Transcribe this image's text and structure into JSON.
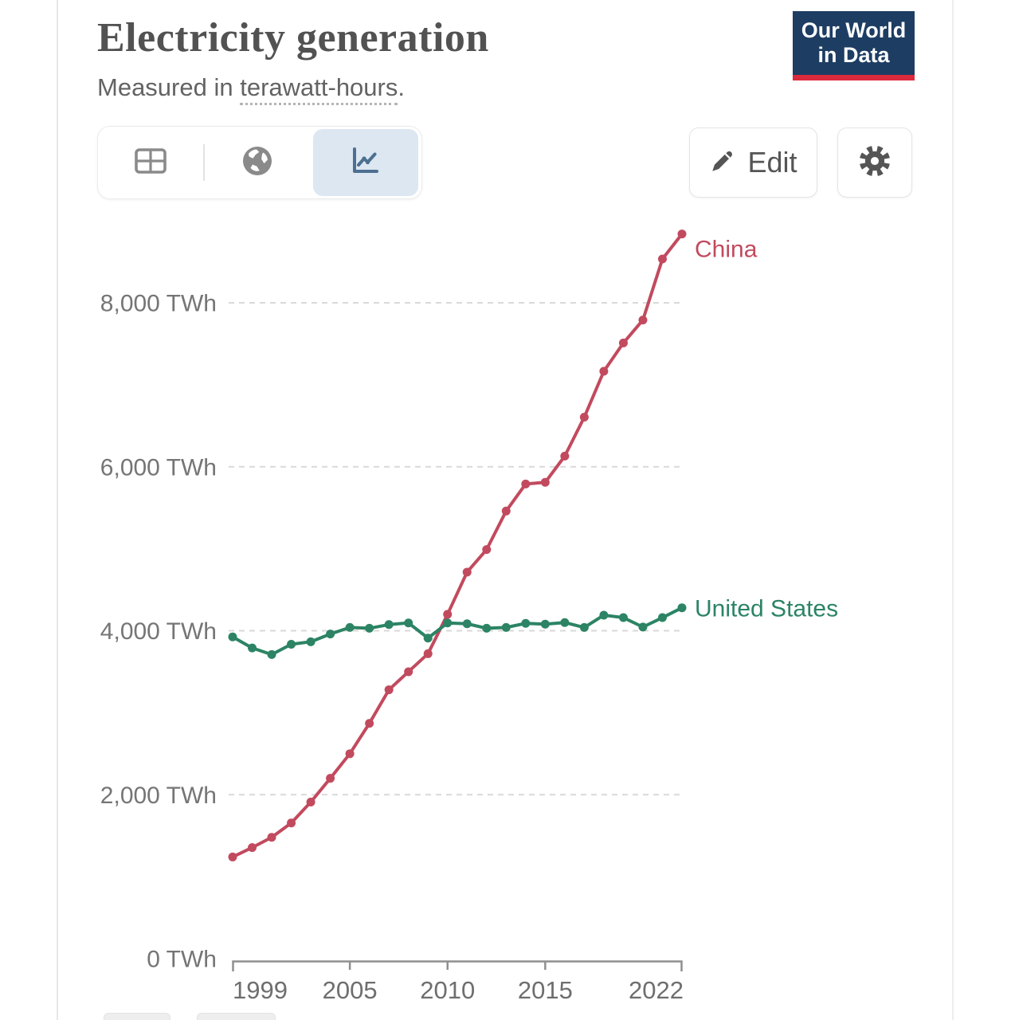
{
  "header": {
    "title": "Electricity generation",
    "subtitle_prefix": "Measured in ",
    "subtitle_term": "terawatt-hours",
    "subtitle_suffix": ".",
    "logo": {
      "line1": "Our World",
      "line2": "in Data"
    }
  },
  "toolbar": {
    "icons": [
      "table",
      "globe",
      "line-chart"
    ],
    "active_icon": "line-chart",
    "active_bg": "#dce7f2"
  },
  "actions": {
    "edit_label": "Edit"
  },
  "colors": {
    "china": "#c24a5e",
    "united_states": "#2c8465",
    "gridline": "#d9d9d9",
    "axis": "#8f8f8f",
    "logo_bg": "#1d3d63",
    "logo_stripe": "#dc2a3d"
  },
  "chart_data": {
    "type": "line",
    "title": "Electricity generation",
    "subtitle": "Measured in terawatt-hours.",
    "unit": "TWh",
    "grid": true,
    "legend_position": "end-of-line-labels",
    "ylim": [
      0,
      9000
    ],
    "x": [
      1999,
      2000,
      2001,
      2002,
      2003,
      2004,
      2005,
      2006,
      2007,
      2008,
      2009,
      2010,
      2011,
      2012,
      2013,
      2014,
      2015,
      2016,
      2017,
      2018,
      2019,
      2020,
      2021,
      2022
    ],
    "x_axis": {
      "ticks": [
        {
          "year": 1999,
          "anchor": "start"
        },
        {
          "year": 2005,
          "anchor": "middle"
        },
        {
          "year": 2010,
          "anchor": "middle"
        },
        {
          "year": 2015,
          "anchor": "middle"
        },
        {
          "year": 2022,
          "anchor": "end"
        }
      ]
    },
    "y_axis": {
      "ticks": [
        {
          "value": 0,
          "label": "0 TWh"
        },
        {
          "value": 2000,
          "label": "2,000 TWh"
        },
        {
          "value": 4000,
          "label": "4,000 TWh"
        },
        {
          "value": 6000,
          "label": "6,000 TWh"
        },
        {
          "value": 8000,
          "label": "8,000 TWh"
        }
      ]
    },
    "series": [
      {
        "name": "China",
        "color": "#c24a5e",
        "label_dy": 29,
        "values": [
          1240,
          1355,
          1480,
          1655,
          1910,
          2200,
          2500,
          2870,
          3280,
          3500,
          3720,
          4200,
          4715,
          4990,
          5460,
          5790,
          5810,
          6130,
          6605,
          7165,
          7510,
          7790,
          8535,
          8840
        ]
      },
      {
        "name": "United States",
        "color": "#2c8465",
        "label_dy": 11,
        "values": [
          3925,
          3790,
          3710,
          3835,
          3865,
          3960,
          4040,
          4030,
          4075,
          4095,
          3910,
          4095,
          4085,
          4030,
          4040,
          4090,
          4080,
          4100,
          4040,
          4190,
          4160,
          4045,
          4160,
          4280
        ]
      }
    ]
  }
}
